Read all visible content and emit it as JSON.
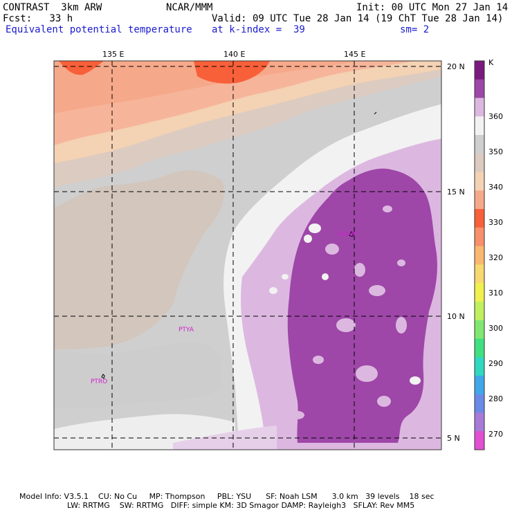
{
  "header": {
    "model": "CONTRAST  3km ARW",
    "org": "NCAR/MMM",
    "init": "Init: 00 UTC Mon 27 Jan 14",
    "fcst": "Fcst:   33 h",
    "valid": "Valid: 09 UTC Tue 28 Jan 14 (19 ChT Tue 28 Jan 14)",
    "field": "Equivalent potential temperature",
    "level": "at k-index =  39",
    "sm": "sm= 2"
  },
  "map": {
    "lon_labels": [
      "135 E",
      "140 E",
      "145 E"
    ],
    "lat_labels": [
      "20 N",
      "15 N",
      "10 N",
      "5 N"
    ],
    "stations": [
      "GUAM",
      "PTYA",
      "PTRO"
    ]
  },
  "colorbar": {
    "unit": "K",
    "labels": [
      "360",
      "350",
      "340",
      "330",
      "320",
      "310",
      "300",
      "290",
      "280",
      "270"
    ],
    "colors": [
      "#7a1a7e",
      "#9e47a8",
      "#dcb8e0",
      "#f2f2f2",
      "#cfcfcf",
      "#dccbc0",
      "#f4d2b4",
      "#f6a98a",
      "#f8603a",
      "#f8906a",
      "#f8b870",
      "#f8d870",
      "#f0f050",
      "#c0f060",
      "#80e870",
      "#40e080",
      "#30d8c0",
      "#40a8e8",
      "#6a8ae8",
      "#a87ad8",
      "#e050d0"
    ]
  },
  "footer": {
    "line1": "Model Info: V3.5.1    CU: No Cu     MP: Thompson     PBL: YSU      SF: Noah LSM      3.0 km   39 levels    18 sec",
    "line2": "LW: RRTMG    SW: RRTMG   DIFF: simple KM: 3D Smagor DAMP: Rayleigh3   SFLAY: Rev MM5"
  }
}
